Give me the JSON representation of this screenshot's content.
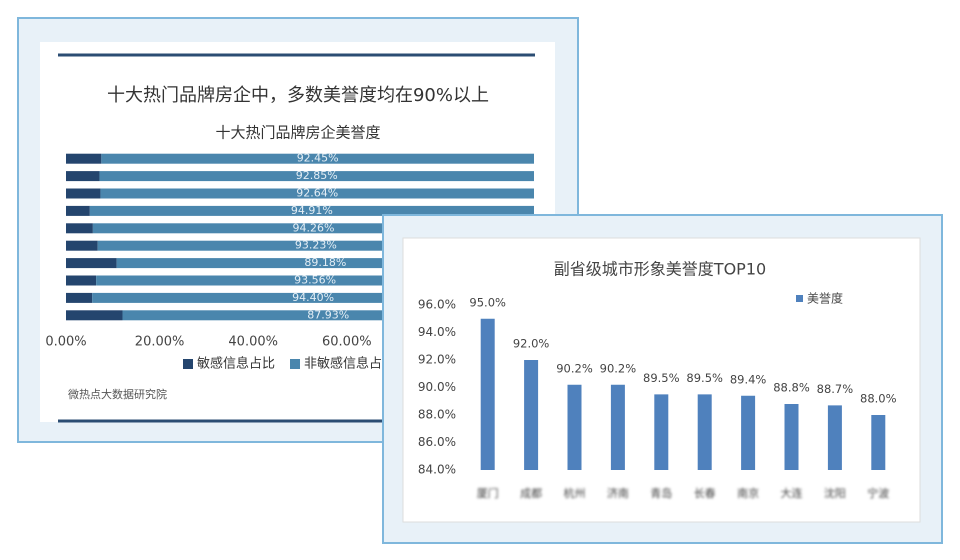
{
  "chart_data": [
    {
      "type": "bar",
      "orientation": "horizontal",
      "stacked": true,
      "title": "十大热门品牌房企中，多数美誉度均在90%以上",
      "subtitle": "十大热门品牌房企美誉度",
      "source": "微热点大数据研究院",
      "categories": [
        null,
        null,
        null,
        null,
        null,
        null,
        null,
        null,
        null,
        null
      ],
      "series": [
        {
          "name": "敏感信息占比",
          "color": "#24456e",
          "values": [
            7.55,
            7.15,
            7.36,
            5.09,
            5.74,
            6.77,
            10.82,
            6.44,
            5.6,
            12.07
          ]
        },
        {
          "name": "非敏感信息占比",
          "color": "#4a86ad",
          "values": [
            92.45,
            92.85,
            92.64,
            94.91,
            94.26,
            93.23,
            89.18,
            93.56,
            94.4,
            87.93
          ],
          "value_labels": [
            "92.45%",
            "92.85%",
            "92.64%",
            "94.91%",
            "94.26%",
            "93.23%",
            "89.18%",
            "93.56%",
            "94.40%",
            "87.93%"
          ]
        }
      ],
      "xlim": [
        0,
        100
      ],
      "xticks": [
        {
          "value": 0,
          "label": "0.00%"
        },
        {
          "value": 20,
          "label": "20.00%"
        },
        {
          "value": 40,
          "label": "40.00%"
        },
        {
          "value": 60,
          "label": "60.00%"
        }
      ],
      "grid": false,
      "legend": "bottom"
    },
    {
      "type": "bar",
      "title": "副省级城市形象美誉度TOP10",
      "categories": [
        "厦门",
        "成都",
        "杭州",
        "济南",
        "青岛",
        "长春",
        "南京",
        "大连",
        "沈阳",
        "宁波"
      ],
      "series": [
        {
          "name": "美誉度",
          "color": "#4f81bd",
          "values": [
            95.0,
            92.0,
            90.2,
            90.2,
            89.5,
            89.5,
            89.4,
            88.8,
            88.7,
            88.0
          ],
          "value_labels": [
            "95.0%",
            "92.0%",
            "90.2%",
            "90.2%",
            "89.5%",
            "89.5%",
            "89.4%",
            "88.8%",
            "88.7%",
            "88.0%"
          ]
        }
      ],
      "ylim": [
        84,
        96
      ],
      "yticks": [
        {
          "value": 84,
          "label": "84.0%"
        },
        {
          "value": 86,
          "label": "86.0%"
        },
        {
          "value": 88,
          "label": "88.0%"
        },
        {
          "value": 90,
          "label": "90.0%"
        },
        {
          "value": 92,
          "label": "92.0%"
        },
        {
          "value": 94,
          "label": "94.0%"
        },
        {
          "value": 96,
          "label": "96.0%"
        }
      ],
      "grid": false,
      "legend": "top-right"
    }
  ]
}
